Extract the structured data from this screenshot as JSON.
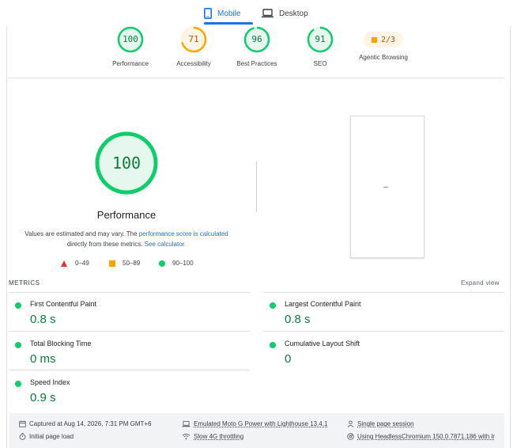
{
  "tabs": [
    {
      "label": "Mobile",
      "active": true,
      "icon": "phone-icon"
    },
    {
      "label": "Desktop",
      "active": false,
      "icon": "laptop-icon"
    }
  ],
  "gauges": [
    {
      "score": "100",
      "label": "Performance",
      "color": "#0cce6b",
      "fill": 1.0
    },
    {
      "score": "71",
      "label": "Accessibility",
      "color": "#ffa400",
      "fill": 0.71
    },
    {
      "score": "96",
      "label": "Best Practices",
      "color": "#0cce6b",
      "fill": 0.96
    },
    {
      "score": "91",
      "label": "SEO",
      "color": "#0cce6b",
      "fill": 0.91
    }
  ],
  "agentic": {
    "value": "2/3",
    "label": "Agentic Browsing"
  },
  "performance": {
    "score": "100",
    "title": "Performance",
    "note_prefix": "Values are estimated and may vary. The ",
    "note_link1": "performance score is calculated",
    "note_middle": " directly from these metrics. ",
    "note_link2": "See calculator."
  },
  "legend": [
    {
      "range": "0–49",
      "shape": "triangle",
      "color": "#e8312b"
    },
    {
      "range": "50–89",
      "shape": "square",
      "color": "#f7a300"
    },
    {
      "range": "90–100",
      "shape": "circle",
      "color": "#0cce6b"
    }
  ],
  "metrics_header": "METRICS",
  "expand_label": "Expand view",
  "metrics": [
    {
      "name": "First Contentful Paint",
      "value": "0.8 s"
    },
    {
      "name": "Largest Contentful Paint",
      "value": "0.8 s"
    },
    {
      "name": "Total Blocking Time",
      "value": "0 ms"
    },
    {
      "name": "Cumulative Layout Shift",
      "value": "0"
    },
    {
      "name": "Speed Index",
      "value": "0.9 s"
    }
  ],
  "footer": {
    "captured": "Captured at Aug 14, 2026, 7:31 PM GMT+6",
    "initial_load": "Initial page load",
    "device": "Emulated Moto G Power with Lighthouse 13.4.1",
    "throttling": "Slow 4G throttling",
    "session": "Single page session",
    "browser": "Using HeadlessChromium 150.0.7871.186 with lr"
  }
}
